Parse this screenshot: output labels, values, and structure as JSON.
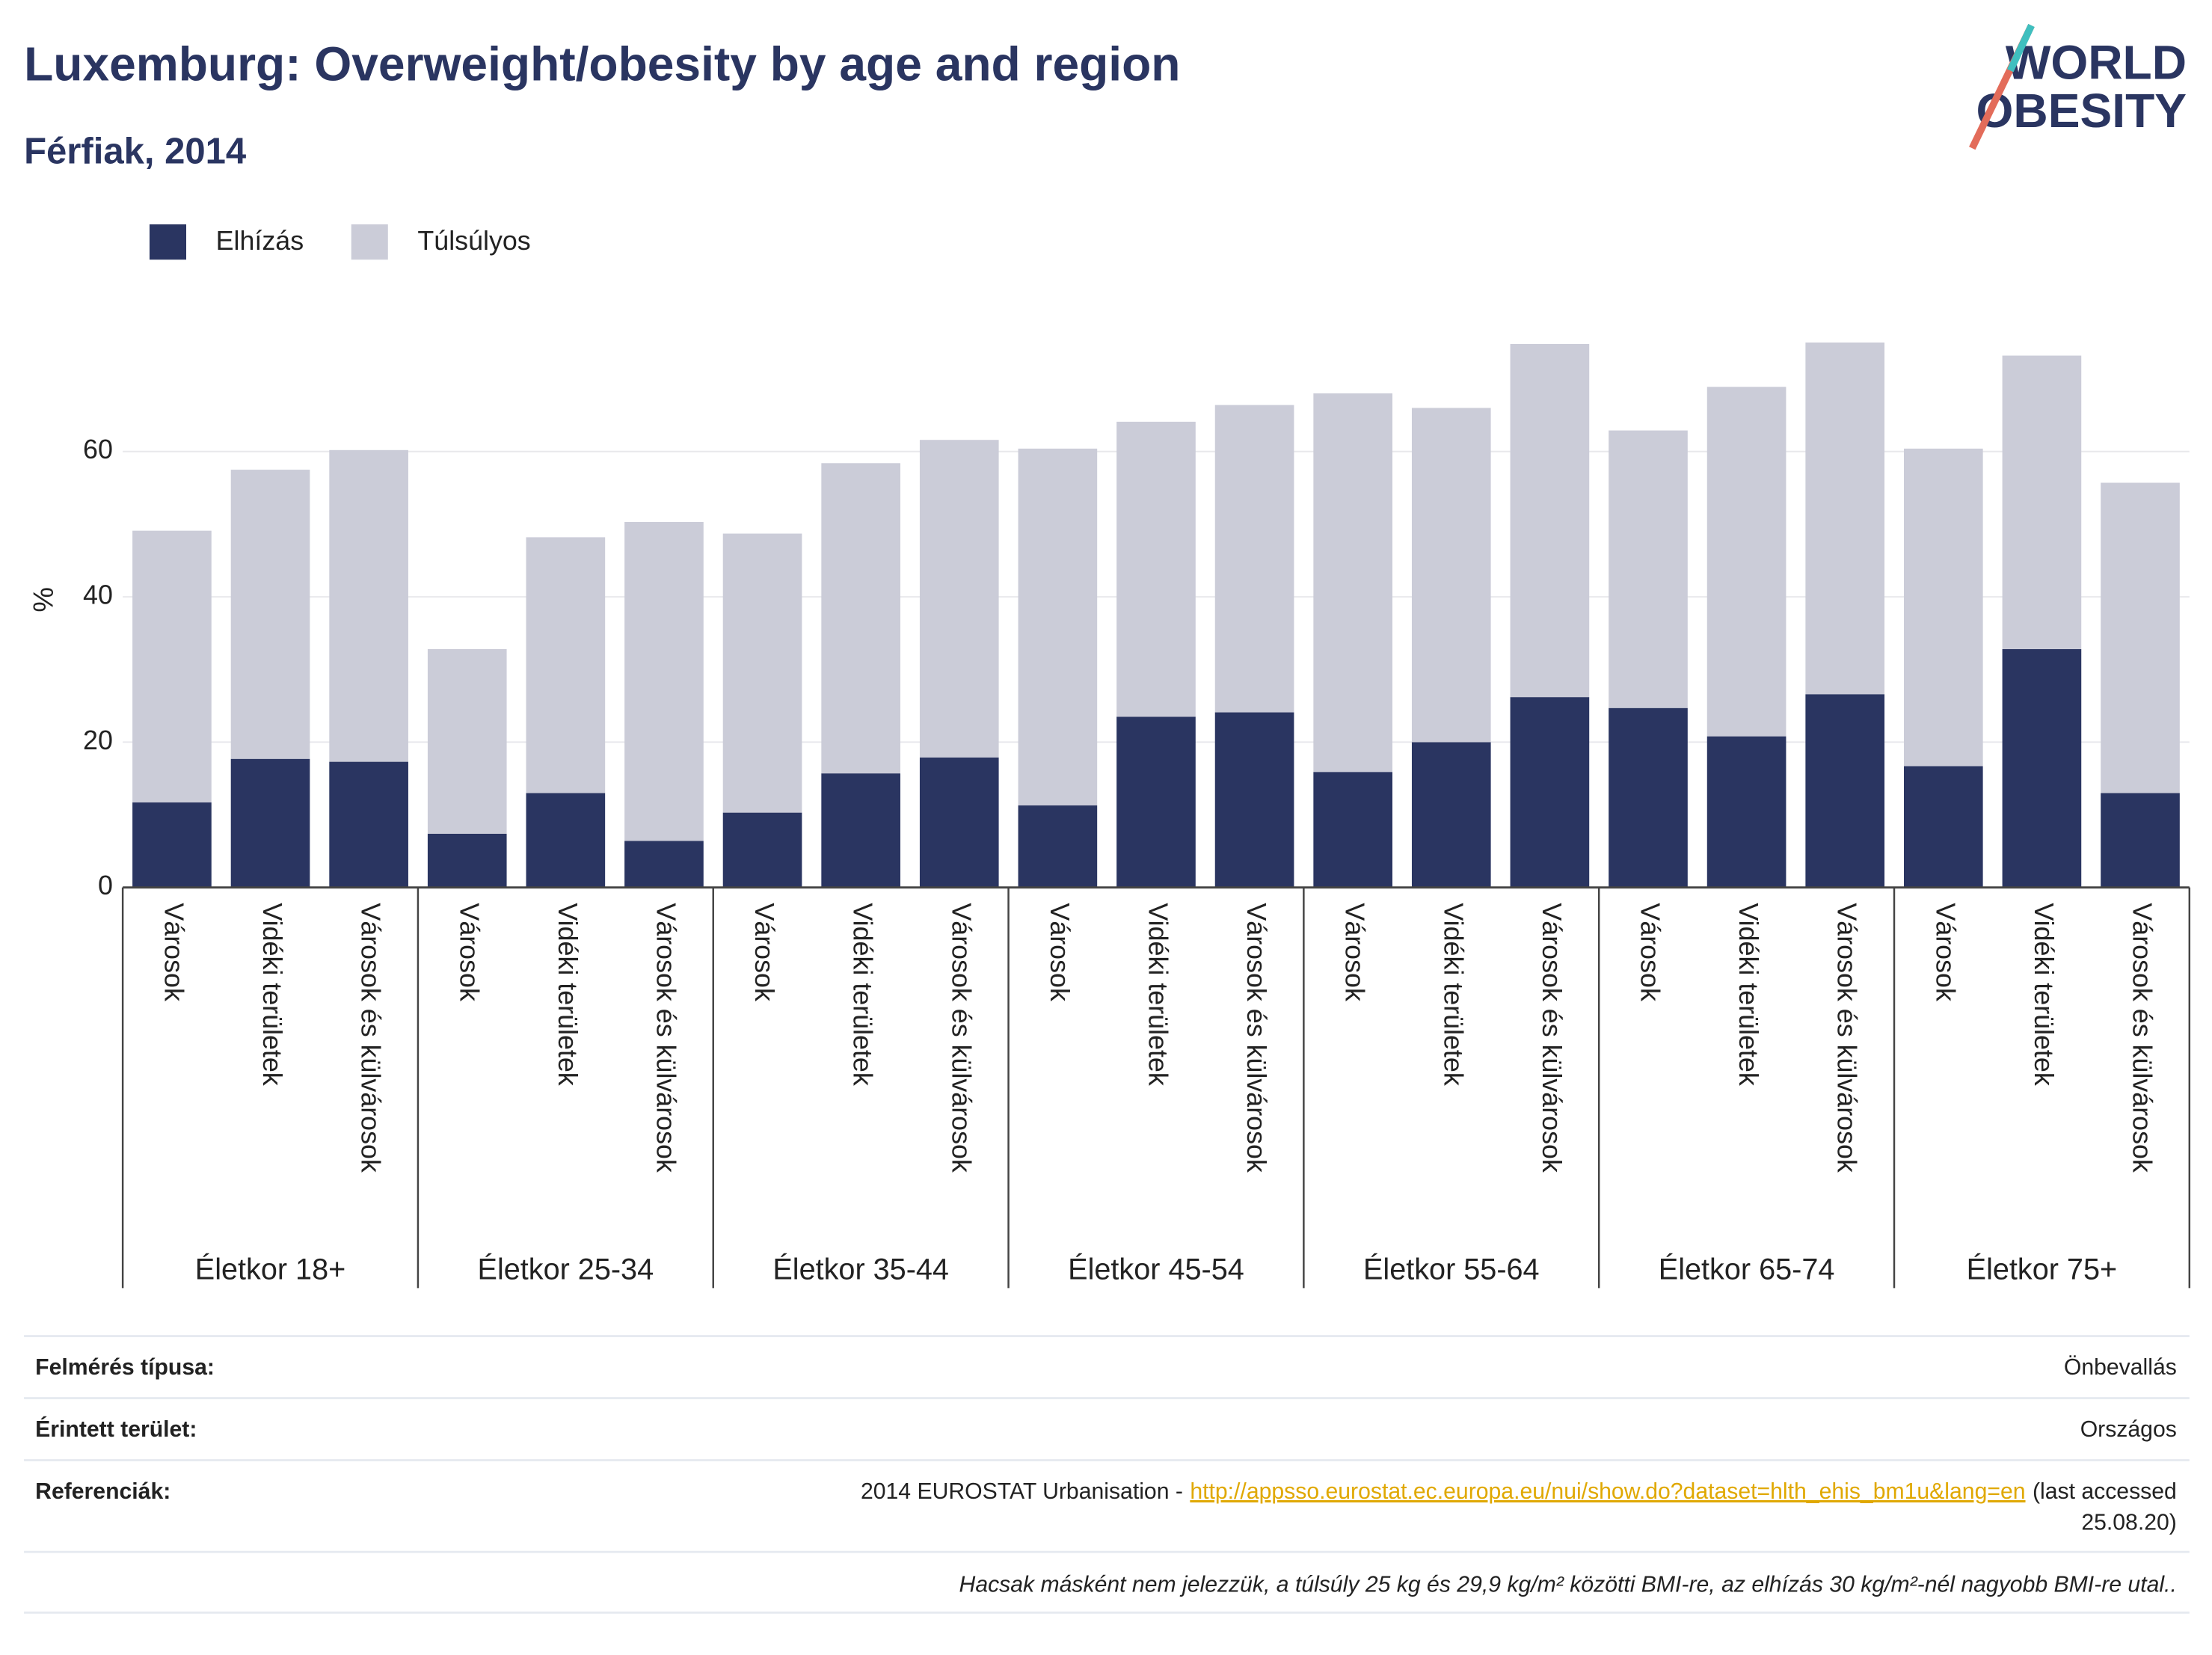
{
  "chart_data": {
    "type": "stacked-bar",
    "title": "Luxemburg: Overweight/obesity by age and region",
    "subtitle": "Férfiak, 2014",
    "y_label": "%",
    "logo": [
      "WORLD",
      "OBESITY"
    ],
    "groups": [
      {
        "name": "Életkor 18+",
        "categories": [
          "Városok",
          "Vidéki területek",
          "Városok és külvárosok"
        ]
      },
      {
        "name": "Életkor 25-34",
        "categories": [
          "Városok",
          "Vidéki területek",
          "Városok és külvárosok"
        ]
      },
      {
        "name": "Életkor 35-44",
        "categories": [
          "Városok",
          "Vidéki területek",
          "Városok és külvárosok"
        ]
      },
      {
        "name": "Életkor 45-54",
        "categories": [
          "Városok",
          "Vidéki területek",
          "Városok és külvárosok"
        ]
      },
      {
        "name": "Életkor 55-64",
        "categories": [
          "Városok",
          "Vidéki területek",
          "Városok és külvárosok"
        ]
      },
      {
        "name": "Életkor 65-74",
        "categories": [
          "Városok",
          "Vidéki területek",
          "Városok és külvárosok"
        ]
      },
      {
        "name": "Életkor 75+",
        "categories": [
          "Városok",
          "Vidéki területek",
          "Városok és külvárosok"
        ]
      }
    ],
    "series": [
      {
        "name": "Elhízás",
        "color": "#2a3561",
        "values": [
          11.7,
          17.7,
          17.3,
          7.4,
          13.0,
          6.4,
          10.3,
          15.7,
          17.9,
          11.3,
          23.5,
          24.1,
          15.9,
          20.0,
          26.2,
          24.7,
          20.8,
          26.6,
          16.7,
          32.8,
          13.0
        ]
      },
      {
        "name": "Túlsúlyos",
        "color": "#cbccd8",
        "values": [
          37.4,
          39.8,
          42.9,
          25.4,
          35.2,
          43.9,
          38.4,
          42.7,
          43.7,
          49.1,
          40.6,
          42.3,
          52.1,
          46.0,
          48.6,
          38.2,
          48.1,
          48.4,
          43.7,
          40.4,
          42.7
        ]
      }
    ],
    "ylim": [
      0,
      77
    ],
    "yticks": [
      0,
      20,
      40,
      60
    ],
    "grid": true
  },
  "footer": {
    "rows": [
      {
        "label": "Felmérés típusa:",
        "value": "Önbevallás"
      },
      {
        "label": "Érintett terület:",
        "value": "Országos"
      }
    ],
    "references": {
      "label": "Referenciák:",
      "text": "2014 EUROSTAT Urbanisation -",
      "link": "http://appsso.eurostat.ec.europa.eu/nui/show.do?dataset=hlth_ehis_bm1u&lang=en",
      "after1": "(last accessed",
      "after2": "25.08.20)"
    },
    "note": "Hacsak másként nem jelezzük, a túlsúly 25 kg és 29,9 kg/m² közötti BMI-re, az elhízás 30 kg/m²-nél nagyobb BMI-re utal.."
  }
}
